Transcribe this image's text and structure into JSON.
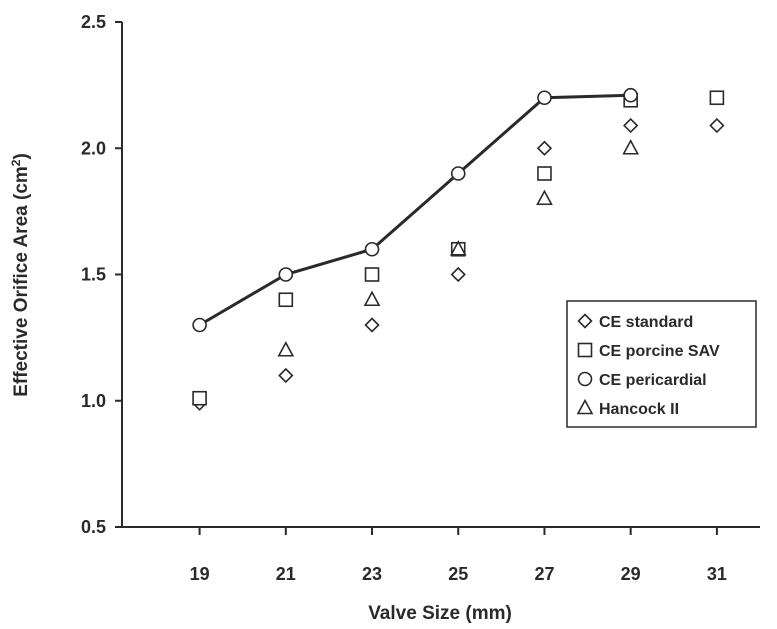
{
  "chart_data": {
    "type": "scatter",
    "xlabel": "Valve Size (mm)",
    "ylabel": "Effective Orifice Area (cm²)",
    "x_ticks": [
      19,
      21,
      23,
      25,
      27,
      29,
      31
    ],
    "y_ticks": [
      0.5,
      1.0,
      1.5,
      2.0,
      2.5
    ],
    "y_tick_labels": [
      "0.5",
      "1.0",
      "1.5",
      "2.0",
      "2.5"
    ],
    "xlim": [
      17.2,
      32
    ],
    "ylim": [
      0.5,
      2.5
    ],
    "grid": false,
    "legend_position": "right",
    "series": [
      {
        "name": "CE standard",
        "marker": "diamond",
        "line": false,
        "x": [
          19,
          21,
          23,
          25,
          27,
          29,
          31
        ],
        "y": [
          0.99,
          1.1,
          1.3,
          1.5,
          2.0,
          2.09,
          2.09
        ]
      },
      {
        "name": "CE porcine SAV",
        "marker": "square",
        "line": false,
        "x": [
          19,
          21,
          23,
          25,
          27,
          29,
          31
        ],
        "y": [
          1.01,
          1.4,
          1.5,
          1.6,
          1.9,
          2.19,
          2.2
        ]
      },
      {
        "name": "CE pericardial",
        "marker": "circle",
        "line": true,
        "x": [
          19,
          21,
          23,
          25,
          27,
          29
        ],
        "y": [
          1.3,
          1.5,
          1.6,
          1.9,
          2.2,
          2.21
        ]
      },
      {
        "name": "Hancock II",
        "marker": "triangle",
        "line": false,
        "x": [
          21,
          23,
          25,
          27,
          29
        ],
        "y": [
          1.2,
          1.4,
          1.6,
          1.8,
          2.0
        ]
      }
    ]
  },
  "colors": {
    "ink": "#2a2a2a",
    "background": "#ffffff"
  }
}
